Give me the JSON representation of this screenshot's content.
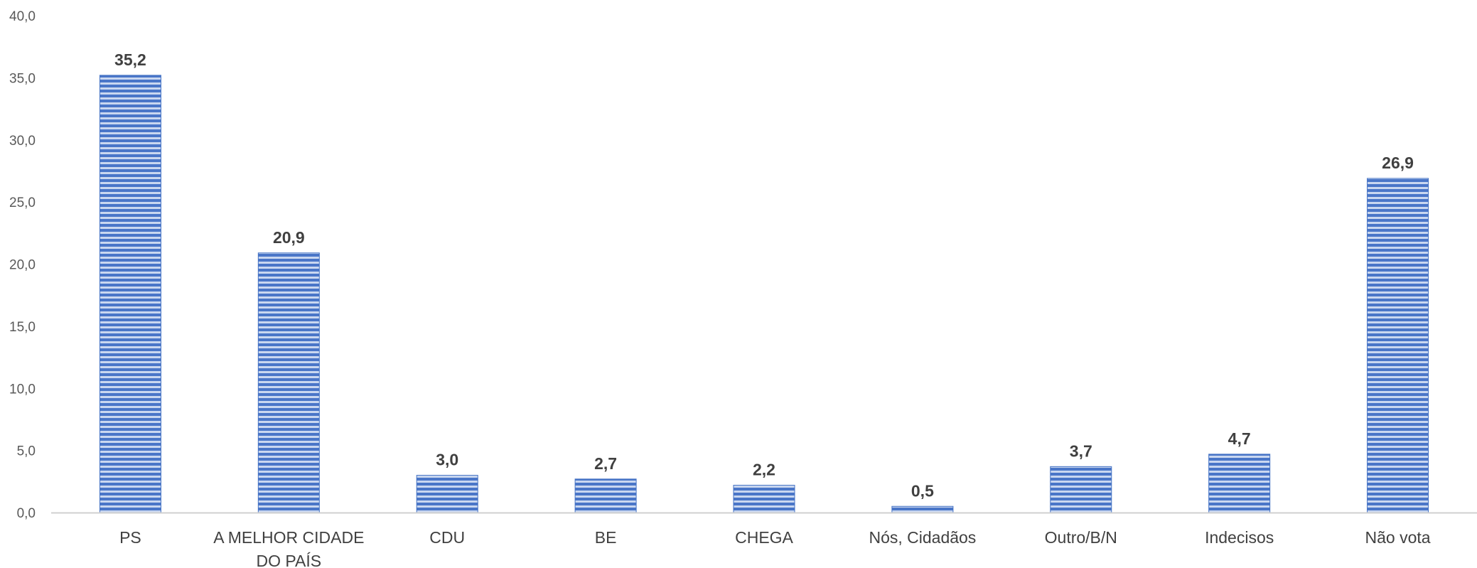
{
  "chart_data": {
    "type": "bar",
    "categories": [
      [
        "PS"
      ],
      [
        "A MELHOR CIDADE",
        "DO PAÍS"
      ],
      [
        "CDU"
      ],
      [
        "BE"
      ],
      [
        "CHEGA"
      ],
      [
        "Nós, Cidadãos"
      ],
      [
        "Outro/B/N"
      ],
      [
        "Indecisos"
      ],
      [
        "Não vota"
      ]
    ],
    "values": [
      35.2,
      20.9,
      3.0,
      2.7,
      2.2,
      0.5,
      3.7,
      4.7,
      26.9
    ],
    "value_labels": [
      "35,2",
      "20,9",
      "3,0",
      "2,7",
      "2,2",
      "0,5",
      "3,7",
      "4,7",
      "26,9"
    ],
    "ylim": [
      0,
      40
    ],
    "yticks": [
      "0,0",
      "5,0",
      "10,0",
      "15,0",
      "20,0",
      "25,0",
      "30,0",
      "35,0",
      "40,0"
    ],
    "grid": false,
    "bar_color": "#4472c4",
    "bar_pattern": "horizontal-stripes",
    "title": "",
    "xlabel": "",
    "ylabel": ""
  }
}
